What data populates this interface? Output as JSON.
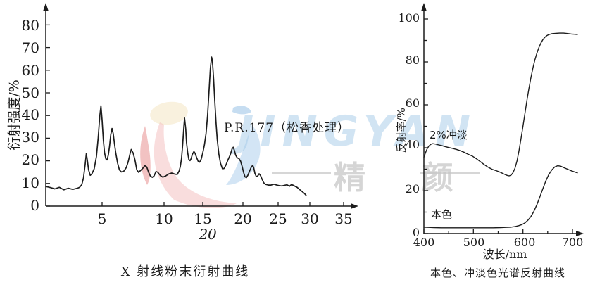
{
  "watermark": {
    "brand_en": "JINGYAN",
    "brand_cn": "精 颜"
  },
  "colors": {
    "ink": "#1c1c1c",
    "watermark_blue": "#a5cbe8",
    "watermark_gray": "#c6c6c6",
    "logo_cream": "#f8efd8",
    "logo_pink": "#f3bcbc",
    "logo_red": "#e88f8f",
    "logo_blue": "#b5d4ee"
  },
  "chart_data": [
    {
      "id": "xrd",
      "type": "line",
      "title": "X 射线粉末衍射曲线",
      "xlabel": "2θ",
      "ylabel": "衍射强度/%",
      "annotation": "P.R.177（松香处理）",
      "xlim": [
        0,
        37
      ],
      "ylim": [
        0,
        88
      ],
      "grid": false,
      "x_ticks": [
        5,
        10,
        15,
        20,
        25,
        30,
        35
      ],
      "y_ticks": [
        0,
        10,
        20,
        30,
        40,
        50,
        60,
        70,
        80
      ],
      "series": [
        {
          "name": "P.R.177（松香处理）",
          "points": [
            [
              0,
              8.7
            ],
            [
              0.4,
              8.2
            ],
            [
              0.8,
              7.6
            ],
            [
              1.2,
              8.3
            ],
            [
              1.6,
              7.2
            ],
            [
              2.0,
              7.9
            ],
            [
              2.4,
              7.4
            ],
            [
              2.8,
              7.9
            ],
            [
              3.0,
              8.3
            ],
            [
              3.2,
              9.5
            ],
            [
              3.35,
              12.5
            ],
            [
              3.5,
              18.5
            ],
            [
              3.6,
              23.2
            ],
            [
              3.7,
              20
            ],
            [
              3.8,
              16
            ],
            [
              3.95,
              13.6
            ],
            [
              4.1,
              14.3
            ],
            [
              4.3,
              16.5
            ],
            [
              4.5,
              22
            ],
            [
              4.65,
              30
            ],
            [
              4.8,
              40
            ],
            [
              4.9,
              44.3
            ],
            [
              5.0,
              38
            ],
            [
              5.1,
              29
            ],
            [
              5.2,
              23.5
            ],
            [
              5.3,
              20.9
            ],
            [
              5.4,
              20.4
            ],
            [
              5.5,
              22.5
            ],
            [
              5.6,
              26.5
            ],
            [
              5.7,
              31.5
            ],
            [
              5.8,
              34.3
            ],
            [
              5.9,
              32
            ],
            [
              6.0,
              27.5
            ],
            [
              6.1,
              23.5
            ],
            [
              6.25,
              19
            ],
            [
              6.4,
              16
            ],
            [
              6.55,
              15.1
            ],
            [
              6.75,
              15.4
            ],
            [
              6.95,
              17
            ],
            [
              7.1,
              19.5
            ],
            [
              7.25,
              23
            ],
            [
              7.35,
              25
            ],
            [
              7.5,
              23.5
            ],
            [
              7.65,
              20.5
            ],
            [
              7.8,
              16
            ],
            [
              7.95,
              14.9
            ],
            [
              8.1,
              15.7
            ],
            [
              8.3,
              16.8
            ],
            [
              8.45,
              17.9
            ],
            [
              8.6,
              17.3
            ],
            [
              8.75,
              15
            ],
            [
              8.9,
              13.3
            ],
            [
              9.05,
              12.7
            ],
            [
              9.2,
              13.4
            ],
            [
              9.35,
              15.3
            ],
            [
              9.5,
              14.9
            ],
            [
              9.7,
              13.5
            ],
            [
              9.9,
              12.8
            ],
            [
              10.2,
              13.3
            ],
            [
              10.6,
              14.2
            ],
            [
              11.0,
              14.6
            ],
            [
              11.4,
              14.1
            ],
            [
              11.7,
              14.0
            ],
            [
              11.95,
              15.5
            ],
            [
              12.1,
              17.5
            ],
            [
              12.25,
              21
            ],
            [
              12.4,
              27
            ],
            [
              12.55,
              35
            ],
            [
              12.65,
              38.9
            ],
            [
              12.8,
              34
            ],
            [
              12.9,
              28
            ],
            [
              13.05,
              23.5
            ],
            [
              13.2,
              20.6
            ],
            [
              13.35,
              20.1
            ],
            [
              13.5,
              21
            ],
            [
              13.65,
              22.8
            ],
            [
              13.85,
              24.1
            ],
            [
              14.0,
              23.4
            ],
            [
              14.2,
              21.5
            ],
            [
              14.4,
              19.8
            ],
            [
              14.6,
              19.4
            ],
            [
              14.8,
              20.8
            ],
            [
              15.0,
              23.5
            ],
            [
              15.2,
              27
            ],
            [
              15.4,
              32
            ],
            [
              15.6,
              40
            ],
            [
              15.8,
              52
            ],
            [
              15.95,
              61
            ],
            [
              16.1,
              65.8
            ],
            [
              16.2,
              64
            ],
            [
              16.35,
              56
            ],
            [
              16.5,
              46
            ],
            [
              16.65,
              37
            ],
            [
              16.8,
              29.5
            ],
            [
              17.0,
              23
            ],
            [
              17.2,
              19
            ],
            [
              17.45,
              16.5
            ],
            [
              17.65,
              16.6
            ],
            [
              17.9,
              18.3
            ],
            [
              18.15,
              20.5
            ],
            [
              18.4,
              22.5
            ],
            [
              18.65,
              25.3
            ],
            [
              18.8,
              26
            ],
            [
              18.95,
              24.5
            ],
            [
              19.1,
              22.5
            ],
            [
              19.3,
              21.3
            ],
            [
              19.5,
              21
            ],
            [
              19.7,
              19.9
            ],
            [
              19.9,
              17.5
            ],
            [
              20.1,
              14.8
            ],
            [
              20.3,
              12.9
            ],
            [
              20.5,
              12.6
            ],
            [
              20.7,
              13.6
            ],
            [
              20.95,
              15.5
            ],
            [
              21.2,
              17.3
            ],
            [
              21.4,
              18
            ],
            [
              21.55,
              16.8
            ],
            [
              21.7,
              14.5
            ],
            [
              21.9,
              13
            ],
            [
              22.1,
              13.3
            ],
            [
              22.3,
              14.3
            ],
            [
              22.5,
              13.5
            ],
            [
              22.7,
              12
            ],
            [
              22.95,
              10.3
            ],
            [
              23.2,
              9.6
            ],
            [
              23.6,
              9.3
            ],
            [
              24.0,
              9.3
            ],
            [
              24.4,
              9.7
            ],
            [
              24.8,
              9.3
            ],
            [
              25.2,
              9.0
            ],
            [
              25.6,
              8.9
            ],
            [
              26.0,
              9.2
            ],
            [
              26.4,
              9.4
            ],
            [
              26.8,
              8.8
            ],
            [
              27.1,
              9.5
            ],
            [
              27.4,
              9.2
            ],
            [
              27.7,
              8.7
            ],
            [
              28.0,
              8.3
            ],
            [
              28.4,
              7.3
            ],
            [
              28.8,
              6.4
            ],
            [
              29.1,
              5.7
            ],
            [
              29.4,
              4.8
            ]
          ]
        }
      ]
    },
    {
      "id": "reflectance",
      "type": "line",
      "title": "本色、冲淡色光谱反射曲线",
      "xlabel": "波长/nm",
      "ylabel": "反射率/%",
      "xlim": [
        400,
        720
      ],
      "ylim": [
        0,
        105
      ],
      "grid": false,
      "x_ticks": [
        400,
        500,
        600,
        700
      ],
      "x_minor_ticks": [
        450,
        550,
        650
      ],
      "y_ticks": [
        0,
        20,
        40,
        60,
        80,
        100
      ],
      "y_minor_ticks": [
        10,
        30,
        50,
        70,
        90
      ],
      "series": [
        {
          "name": "2%冲淡",
          "points": [
            [
              400,
              35.5
            ],
            [
              403,
              37.5
            ],
            [
              406,
              39.2
            ],
            [
              410,
              40.8
            ],
            [
              414,
              41.6
            ],
            [
              418,
              41.9
            ],
            [
              424,
              41.7
            ],
            [
              430,
              41.3
            ],
            [
              436,
              41.0
            ],
            [
              442,
              40.6
            ],
            [
              450,
              40.1
            ],
            [
              458,
              39.7
            ],
            [
              466,
              39.2
            ],
            [
              474,
              38.6
            ],
            [
              482,
              37.8
            ],
            [
              490,
              36.9
            ],
            [
              498,
              36.1
            ],
            [
              506,
              34.9
            ],
            [
              514,
              33.5
            ],
            [
              522,
              32.1
            ],
            [
              530,
              30.9
            ],
            [
              538,
              29.9
            ],
            [
              546,
              29.3
            ],
            [
              554,
              28.6
            ],
            [
              562,
              27.7
            ],
            [
              568,
              27.1
            ],
            [
              572,
              26.9
            ],
            [
              576,
              27.2
            ],
            [
              580,
              28.4
            ],
            [
              584,
              30.5
            ],
            [
              588,
              33.8
            ],
            [
              592,
              38.5
            ],
            [
              596,
              44
            ],
            [
              600,
              50
            ],
            [
              604,
              56
            ],
            [
              608,
              62
            ],
            [
              612,
              67.5
            ],
            [
              616,
              72.5
            ],
            [
              620,
              77
            ],
            [
              624,
              80.8
            ],
            [
              628,
              84
            ],
            [
              632,
              86.6
            ],
            [
              636,
              88.7
            ],
            [
              640,
              90.3
            ],
            [
              644,
              91.4
            ],
            [
              648,
              92.2
            ],
            [
              652,
              92.7
            ],
            [
              658,
              93.1
            ],
            [
              666,
              93.3
            ],
            [
              674,
              93.4
            ],
            [
              682,
              93.4
            ],
            [
              690,
              93.2
            ],
            [
              698,
              93.0
            ],
            [
              704,
              92.9
            ],
            [
              710,
              92.8
            ]
          ]
        },
        {
          "name": "本色",
          "points": [
            [
              400,
              3.0
            ],
            [
              410,
              2.9
            ],
            [
              420,
              2.8
            ],
            [
              435,
              2.7
            ],
            [
              450,
              2.7
            ],
            [
              465,
              2.7
            ],
            [
              480,
              2.7
            ],
            [
              495,
              2.7
            ],
            [
              510,
              2.7
            ],
            [
              525,
              2.7
            ],
            [
              540,
              2.7
            ],
            [
              555,
              2.8
            ],
            [
              565,
              2.9
            ],
            [
              575,
              3.0
            ],
            [
              585,
              3.3
            ],
            [
              592,
              3.7
            ],
            [
              598,
              4.2
            ],
            [
              604,
              5.0
            ],
            [
              610,
              6.2
            ],
            [
              616,
              7.9
            ],
            [
              622,
              10.3
            ],
            [
              628,
              13.4
            ],
            [
              634,
              17.0
            ],
            [
              640,
              20.8
            ],
            [
              646,
              24.4
            ],
            [
              652,
              27.4
            ],
            [
              658,
              29.6
            ],
            [
              664,
              31.0
            ],
            [
              670,
              31.6
            ],
            [
              676,
              31.4
            ],
            [
              682,
              30.8
            ],
            [
              690,
              30.0
            ],
            [
              698,
              29.2
            ],
            [
              706,
              28.6
            ],
            [
              710,
              28.3
            ]
          ]
        }
      ]
    }
  ]
}
